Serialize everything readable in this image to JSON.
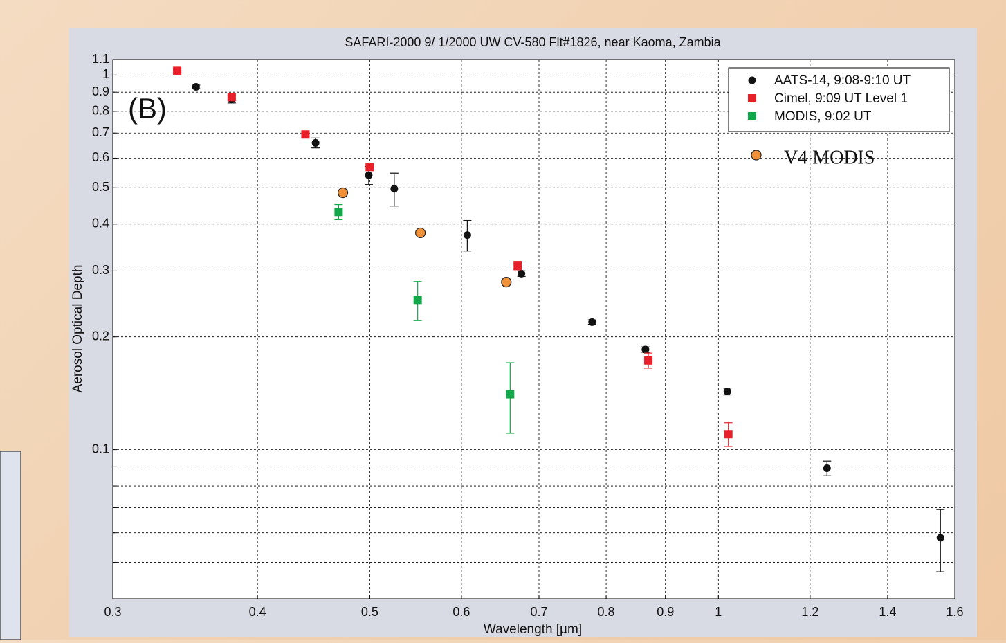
{
  "chart_data": {
    "type": "scatter",
    "title": "SAFARI-2000  9/ 1/2000 UW CV-580 Flt#1826, near Kaoma, Zambia",
    "xlabel": "Wavelength [µm]",
    "ylabel": "Aerosol Optical Depth",
    "annotation": "(B)",
    "xscale": "log",
    "yscale": "log",
    "grid": true,
    "legend": "upper right",
    "xlim": [
      0.3,
      1.6
    ],
    "xticks": [
      0.3,
      0.4,
      0.5,
      0.6,
      0.7,
      0.8,
      0.9,
      1,
      1.2,
      1.4,
      1.6
    ],
    "ylim": [
      0.04,
      1.1
    ],
    "yticks": [
      0.1,
      0.2,
      0.3,
      0.4,
      0.5,
      0.6,
      0.7,
      0.8,
      0.9,
      1,
      1.1
    ],
    "yminorticks": [
      0.05,
      0.06,
      0.07,
      0.08,
      0.09
    ],
    "series": [
      {
        "name": "AATS-14, 9:08-9:10 UT",
        "color": "#111111",
        "marker": "dot",
        "in_legend": true,
        "x": [
          0.354,
          0.38,
          0.449,
          0.499,
          0.525,
          0.607,
          0.676,
          0.778,
          0.865,
          1.018,
          1.241,
          1.555
        ],
        "values": [
          0.93,
          0.862,
          0.659,
          0.54,
          0.497,
          0.374,
          0.295,
          0.219,
          0.185,
          0.143,
          0.0892,
          0.0582
        ],
        "errors": [
          0.01,
          0.02,
          0.02,
          0.03,
          0.05,
          0.035,
          0.005,
          0.003,
          0.003,
          0.003,
          0.004,
          0.011
        ]
      },
      {
        "name": "Cimel, 9:09 UT Level 1",
        "color": "#e8202a",
        "marker": "square",
        "in_legend": true,
        "x": [
          0.341,
          0.38,
          0.44,
          0.5,
          0.671,
          0.87,
          1.02
        ],
        "values": [
          1.026,
          0.873,
          0.694,
          0.568,
          0.31,
          0.173,
          0.11
        ],
        "errors": [
          0.01,
          0.01,
          0.01,
          0.01,
          0.008,
          0.008,
          0.008
        ]
      },
      {
        "name": "MODIS, 9:02 UT",
        "color": "#12a84a",
        "marker": "square",
        "in_legend": true,
        "x": [
          0.47,
          0.55,
          0.661
        ],
        "values": [
          0.431,
          0.251,
          0.1406
        ],
        "errors": [
          0.02,
          0.03,
          0.03
        ]
      },
      {
        "name": "V4 MODIS",
        "color": "#f0913a",
        "marker": "circle",
        "in_legend": false,
        "x": [
          0.474,
          0.553,
          0.656
        ],
        "values": [
          0.485,
          0.379,
          0.28
        ]
      }
    ]
  }
}
